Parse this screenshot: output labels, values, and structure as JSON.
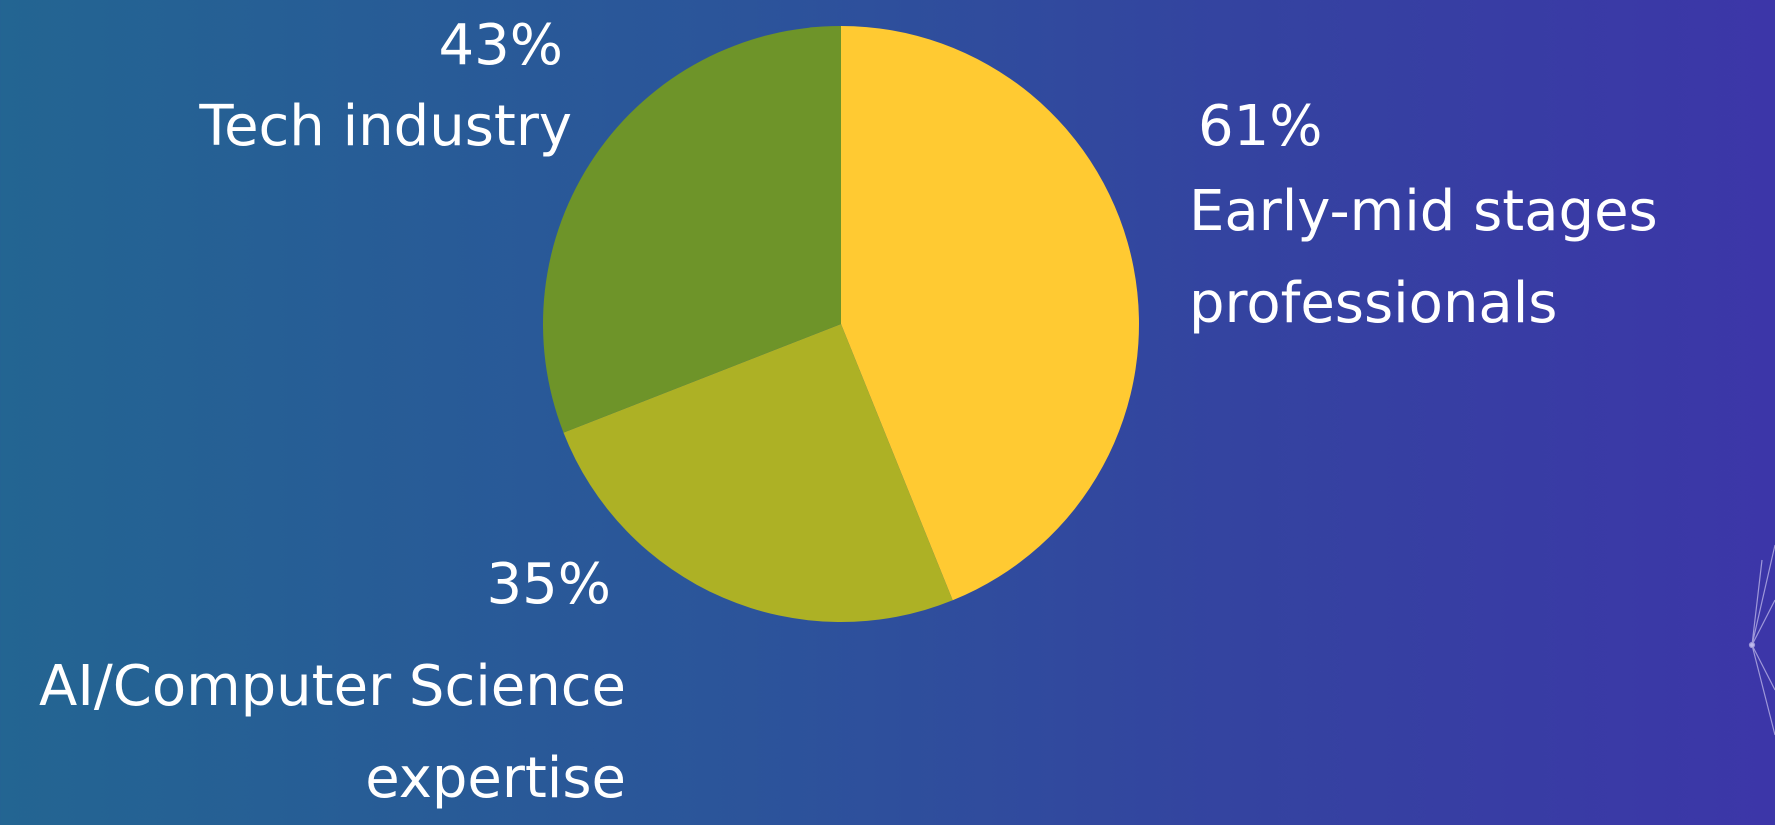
{
  "chart_data": {
    "type": "pie",
    "categories": [
      "Early-mid stages professionals",
      "AI/Computer Science expertise",
      "Tech industry"
    ],
    "values": [
      61,
      35,
      43
    ],
    "value_labels": [
      "61%",
      "35%",
      "43%"
    ],
    "colors": [
      "#ffca32",
      "#adb125",
      "#6e9429"
    ]
  }
}
